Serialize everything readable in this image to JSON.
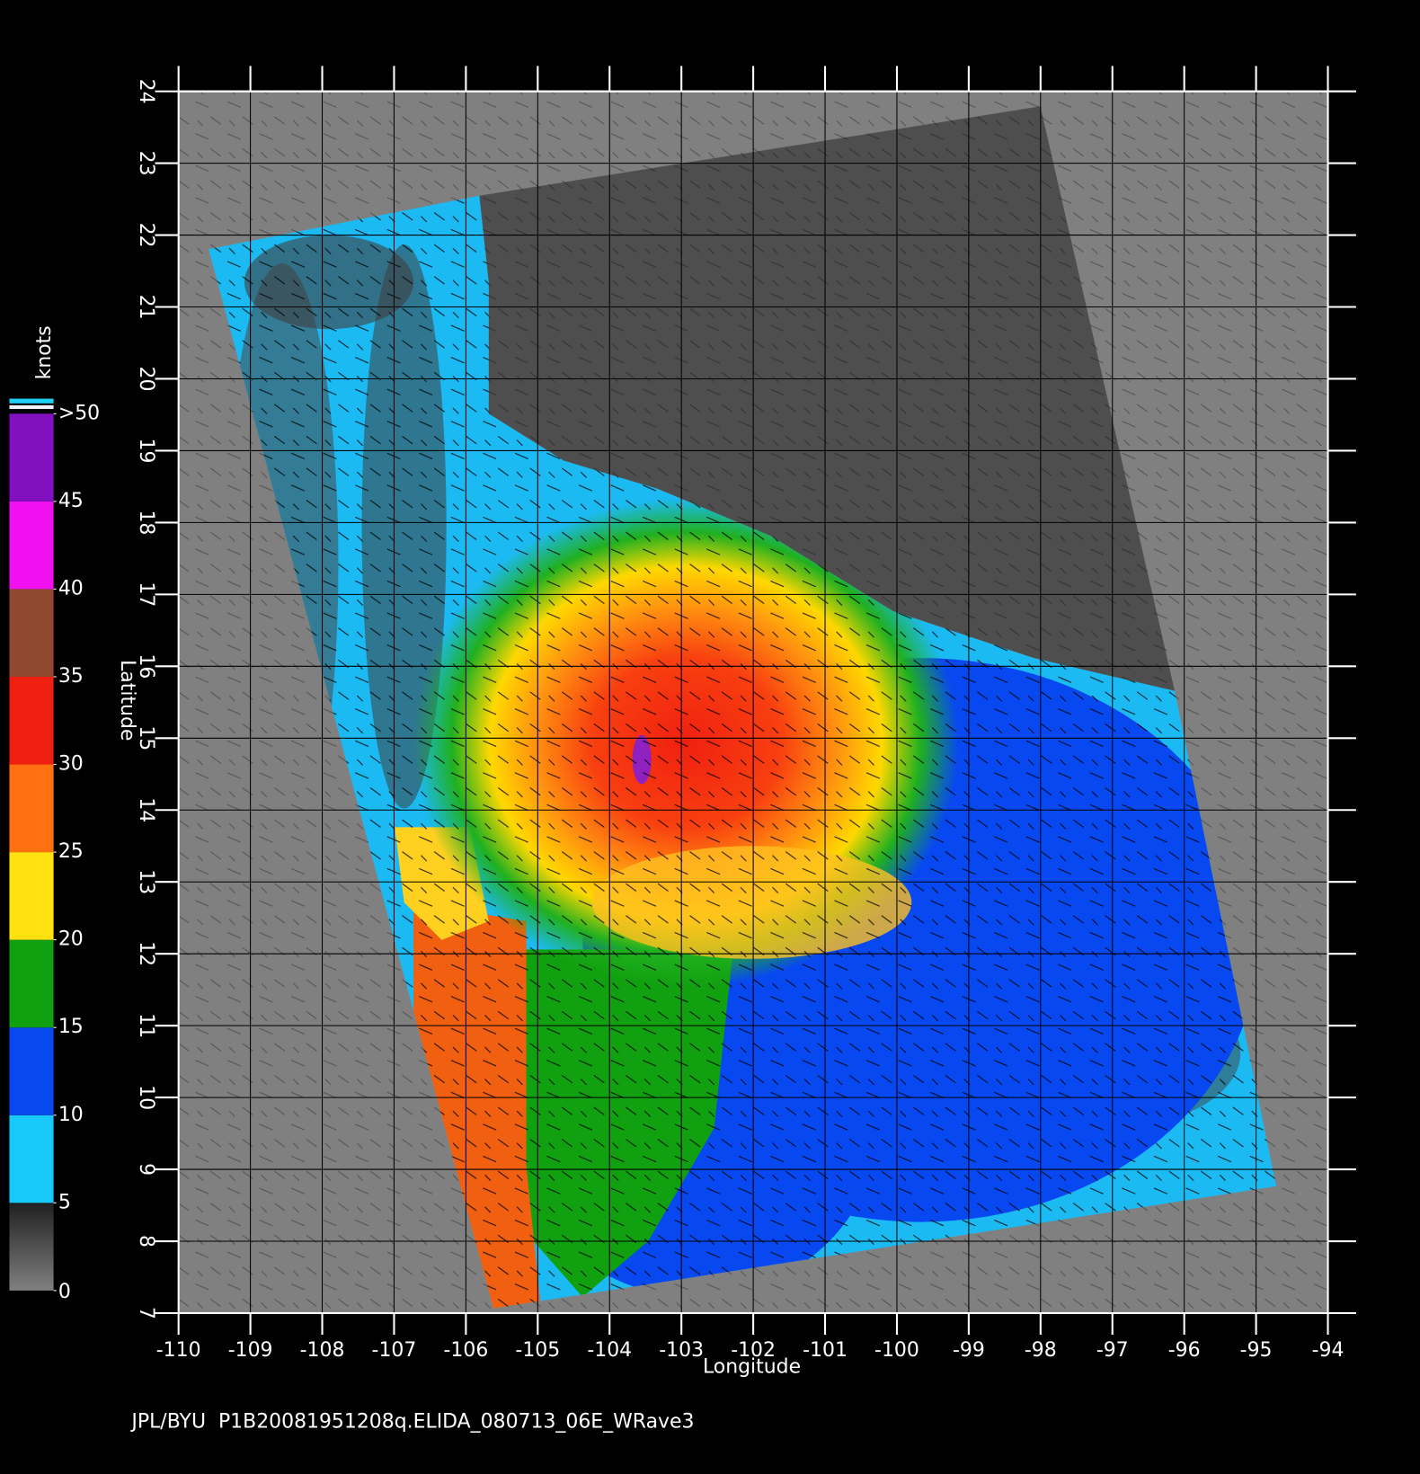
{
  "chart_data": {
    "type": "map",
    "x_label": "Longitude",
    "y_label": "Latitude",
    "footer": "JPL/BYU  P1B20081951208q.ELIDA_080713_06E_WRave3",
    "xlim": [
      -110,
      -94
    ],
    "ylim": [
      7,
      24
    ],
    "xticks": [
      -110,
      -109,
      -108,
      -107,
      -106,
      -105,
      -104,
      -103,
      -102,
      -101,
      -100,
      -99,
      -98,
      -97,
      -96,
      -95,
      -94
    ],
    "yticks": [
      7,
      8,
      9,
      10,
      11,
      12,
      13,
      14,
      15,
      16,
      17,
      18,
      19,
      20,
      21,
      22,
      23,
      24
    ],
    "grid": true,
    "colorbar": {
      "label": "knots",
      "ticks": [
        0,
        5,
        10,
        15,
        20,
        25,
        30,
        35,
        40,
        45,
        {
          "value": 50,
          "label": ">50"
        }
      ],
      "colors": [
        "#606060",
        "#18c8f8",
        "#0848f0",
        "#10a010",
        "#ffe010",
        "#ff7010",
        "#f02010",
        "#904830",
        "#f010f0",
        "#8010c0"
      ]
    }
  }
}
